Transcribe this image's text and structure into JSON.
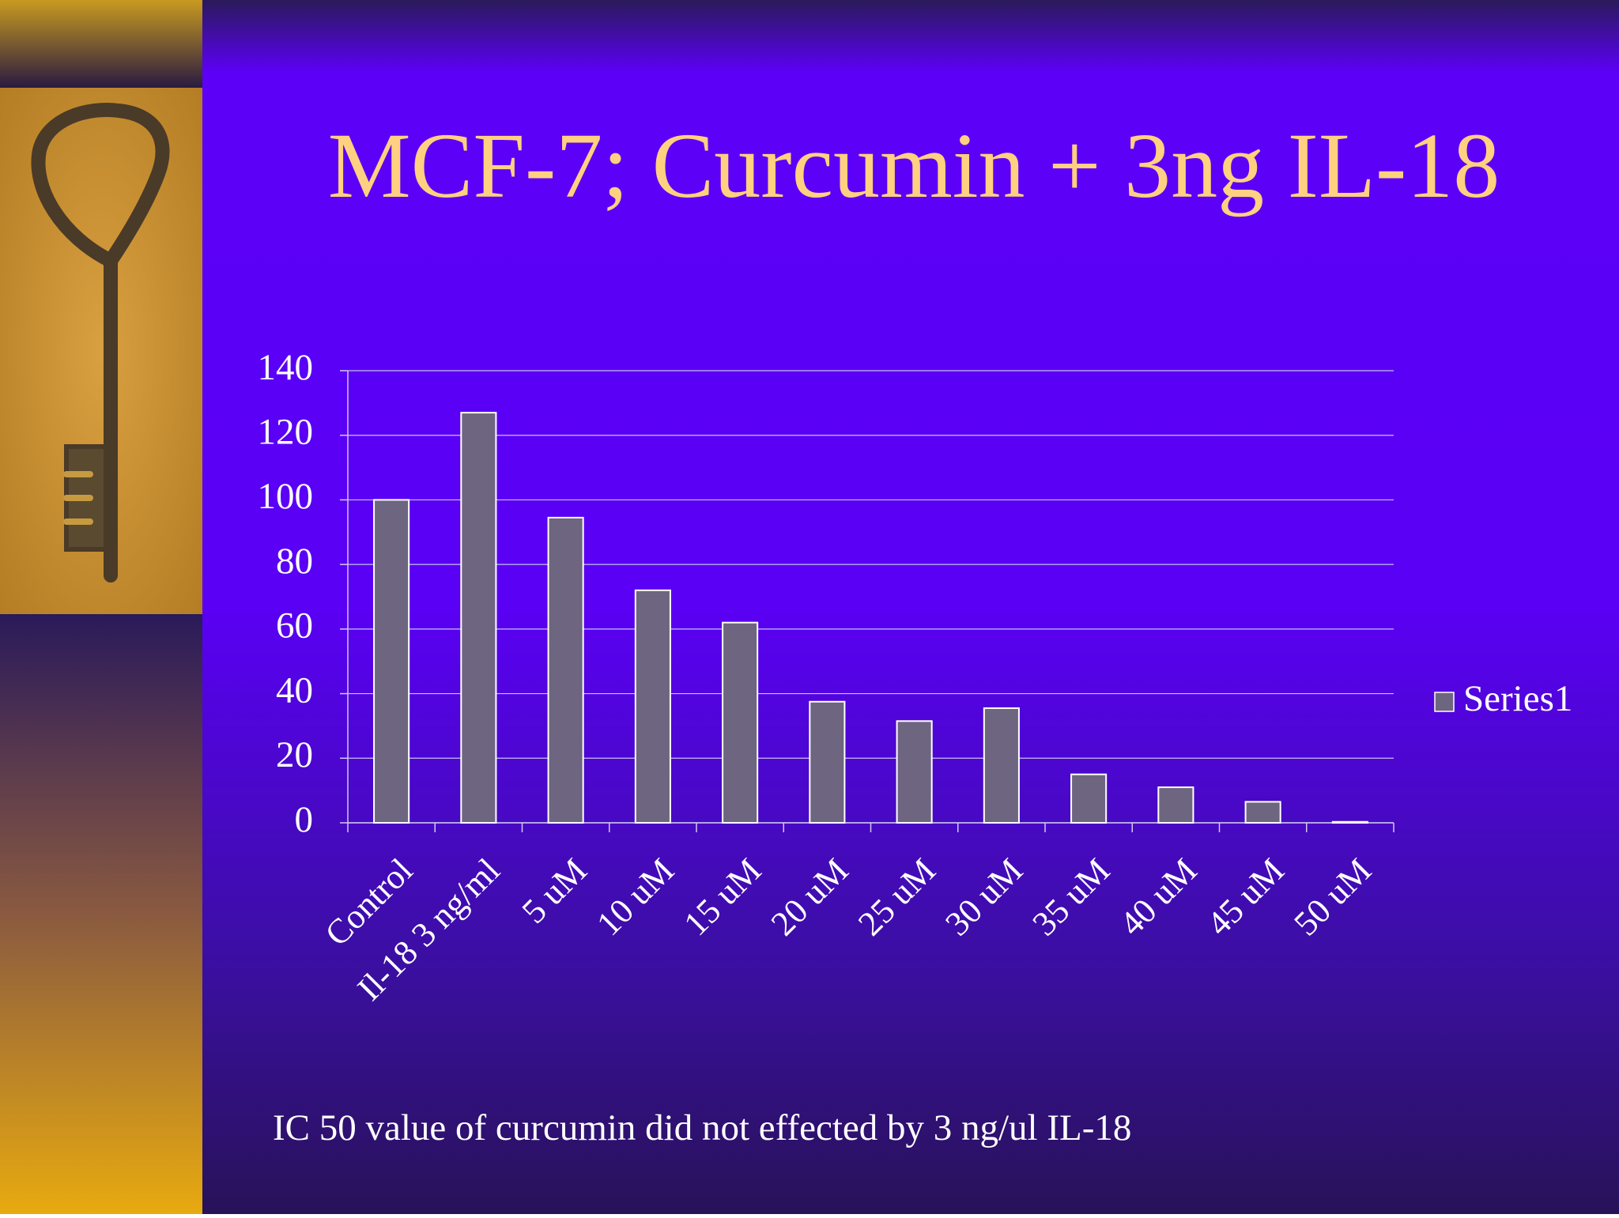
{
  "chart_data": {
    "type": "bar",
    "title": "MCF-7; Curcumin + 3ng IL-18",
    "categories": [
      "Control",
      "Il-18 3 ng/ml",
      "5 uM",
      "10 uM",
      "15 uM",
      "20 uM",
      "25 uM",
      "30 uM",
      "35 uM",
      "40 uM",
      "45 uM",
      "50 uM"
    ],
    "series": [
      {
        "name": "Series1",
        "color": "#6e6680",
        "values": [
          100,
          127,
          94.5,
          72,
          62,
          37.5,
          31.5,
          35.5,
          15,
          11,
          6.5,
          0.3
        ]
      }
    ],
    "ylim": [
      0,
      140
    ],
    "yticks": [
      0,
      20,
      40,
      60,
      80,
      100,
      120,
      140
    ],
    "grid": true,
    "legend": "right",
    "annotation": "IC 50 value of curcumin did not effected by 3 ng/ul IL-18"
  }
}
